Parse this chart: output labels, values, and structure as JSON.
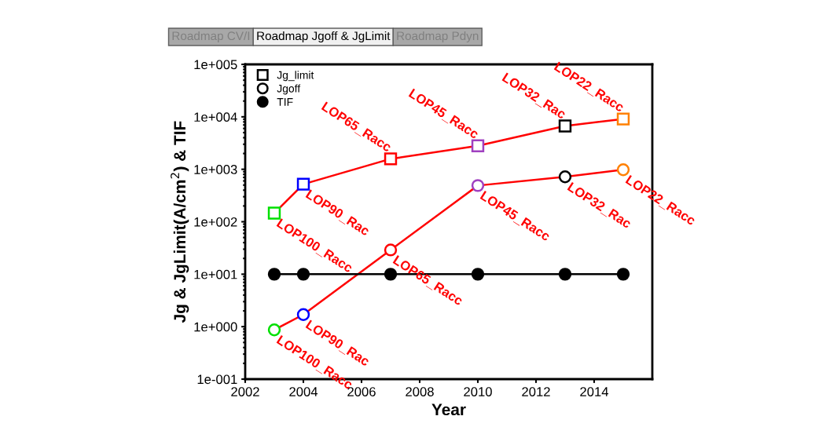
{
  "chart_data": {
    "type": "line",
    "xlabel": "Year",
    "ylabel": "Jg & JgLimit(A/cm$^{2}$) & TIF",
    "x": [
      2003,
      2004,
      2007,
      2010,
      2013,
      2015
    ],
    "series": [
      {
        "name": "Jg_limit",
        "color": "#ff0000",
        "marker": "square",
        "colors": [
          "#00e000",
          "#0000ff",
          "#ff0000",
          "#a040c0",
          "#000000",
          "#ff8000"
        ],
        "values": [
          146,
          520,
          1580,
          2800,
          6700,
          9100
        ],
        "value_labels": [
          "LOP100_Racc",
          "LOP90_Rac",
          "LOP65_Racc",
          "LOP45_Racc",
          "LOP32_Rac",
          "LOP22_Racc"
        ]
      },
      {
        "name": "Jgoff",
        "color": "#ff0000",
        "marker": "circle",
        "colors": [
          "#00e000",
          "#0000ff",
          "#ff0000",
          "#a040c0",
          "#000000",
          "#ff8000"
        ],
        "values": [
          0.87,
          1.7,
          29,
          490,
          720,
          980
        ],
        "value_labels": [
          "LOP100_Racc",
          "LOP90_Rac",
          "LOP65_Racc",
          "LOP45_Racc",
          "LOP32_Rac",
          "LOP22_Racc"
        ]
      },
      {
        "name": "TIF",
        "color": "#000000",
        "marker": "filled_circle",
        "colors": [
          "#000000",
          "#000000",
          "#000000",
          "#000000",
          "#000000",
          "#000000"
        ],
        "values": [
          10,
          10,
          10,
          10,
          10,
          10
        ]
      }
    ],
    "log": "y",
    "xlim": [
      2002,
      2016
    ],
    "xticks": [
      2002,
      2004,
      2006,
      2008,
      2010,
      2012,
      2014
    ],
    "ylim": [
      0.1,
      100000
    ],
    "yticks": [
      {
        "value": 0.1,
        "label": "1e-001"
      },
      {
        "value": 1,
        "label": "1e+000"
      },
      {
        "value": 10,
        "label": "1e+001"
      },
      {
        "value": 100,
        "label": "1e+002"
      },
      {
        "value": 1000,
        "label": "1e+003"
      },
      {
        "value": 10000,
        "label": "1e+004"
      },
      {
        "value": 100000,
        "label": "1e+005"
      }
    ],
    "grid": false,
    "legend": "top left",
    "annotations": [
      "Roadmap CV/I",
      "Roadmap Jgoff & JgLimit",
      "Roadmap Pdyn"
    ]
  }
}
